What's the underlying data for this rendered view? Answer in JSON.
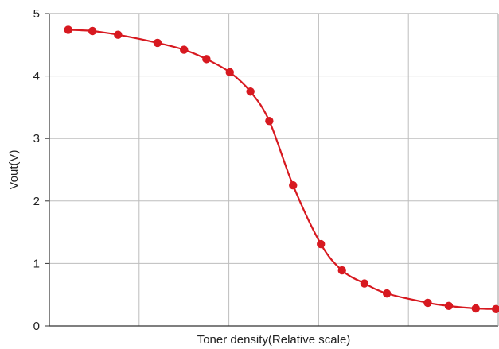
{
  "chart_data": {
    "type": "line",
    "title": "",
    "xlabel": "Toner density(Relative scale)",
    "ylabel": "Vout(V)",
    "xlim": [
      0,
      100
    ],
    "ylim": [
      0,
      5
    ],
    "y_ticks": [
      "0",
      "1",
      "2",
      "3",
      "4",
      "5"
    ],
    "x_tick_labels": [],
    "grid": true,
    "legend": "none",
    "series": [
      {
        "color": "#d71920",
        "marker": "circle",
        "smooth": true,
        "x": [
          4.2,
          9.6,
          15.3,
          24.1,
          30.0,
          35.0,
          40.2,
          44.8,
          49.0,
          54.3,
          60.5,
          65.2,
          70.2,
          75.2,
          84.3,
          89.0,
          95.0,
          99.5
        ],
        "y": [
          4.74,
          4.72,
          4.66,
          4.53,
          4.42,
          4.27,
          4.06,
          3.75,
          3.28,
          2.25,
          1.31,
          0.89,
          0.68,
          0.52,
          0.37,
          0.32,
          0.28,
          0.27
        ]
      }
    ]
  }
}
